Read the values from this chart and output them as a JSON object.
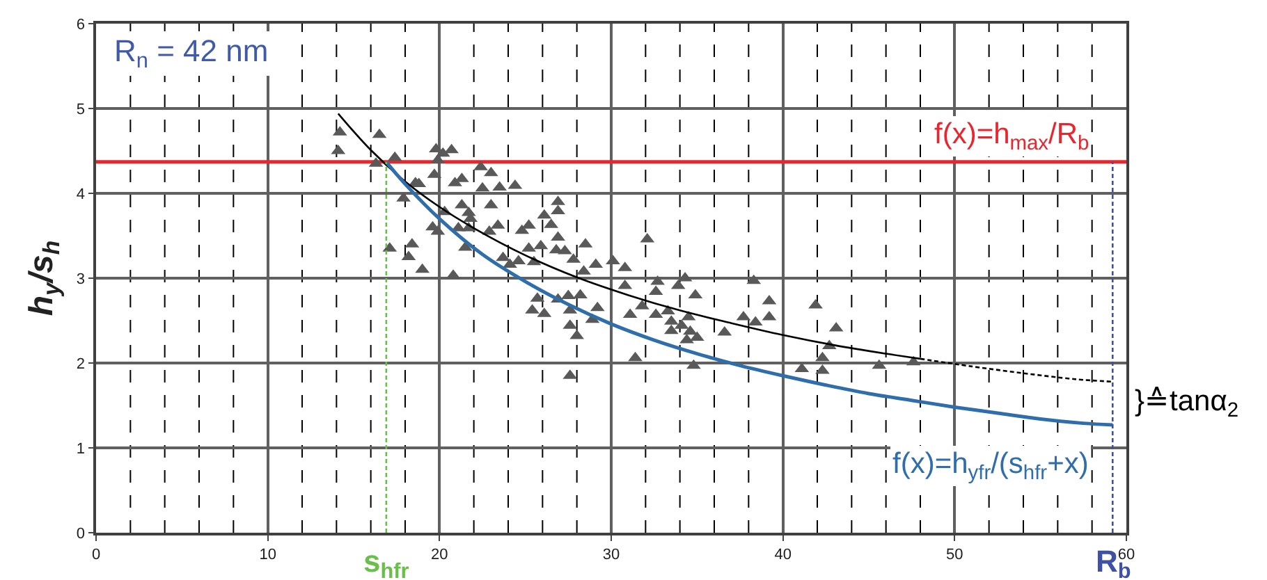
{
  "chart_data": {
    "type": "scatter",
    "ylabel": "h$_{y}$/s$_{h}$",
    "xlim": [
      0,
      60
    ],
    "xticks": [
      0,
      {
        "value": 2,
        "label": null
      },
      {
        "value": 4,
        "label": null
      },
      {
        "value": 6,
        "label": null
      },
      {
        "value": 8,
        "label": null
      },
      10,
      {
        "value": 12,
        "label": null
      },
      {
        "value": 14,
        "label": null
      },
      {
        "value": 16,
        "label": null
      },
      {
        "value": 18,
        "label": null
      },
      20,
      {
        "value": 22,
        "label": null
      },
      {
        "value": 24,
        "label": null
      },
      {
        "value": 26,
        "label": null
      },
      {
        "value": 28,
        "label": null
      },
      30,
      {
        "value": 32,
        "label": null
      },
      {
        "value": 34,
        "label": null
      },
      {
        "value": 36,
        "label": null
      },
      {
        "value": 38,
        "label": null
      },
      40,
      {
        "value": 42,
        "label": null
      },
      {
        "value": 44,
        "label": null
      },
      {
        "value": 46,
        "label": null
      },
      {
        "value": 48,
        "label": null
      },
      50,
      {
        "value": 52,
        "label": null
      },
      {
        "value": 54,
        "label": null
      },
      {
        "value": 56,
        "label": null
      },
      {
        "value": 58,
        "label": null
      },
      60
    ],
    "ylim": [
      0,
      6
    ],
    "yticks": [
      0,
      1,
      2,
      3,
      4,
      5,
      6
    ],
    "grid": true,
    "series": [
      {
        "marker": "triangle",
        "color": "#595959",
        "x": [
          14.2,
          14.1,
          16.5,
          16.3,
          17.4,
          19.8,
          20.2,
          20.7,
          19.9,
          19.7,
          22.4,
          23.0,
          20.9,
          21.3,
          22.5,
          23.5,
          24.4,
          18.6,
          18.8,
          17.9,
          23.0,
          21.3,
          21.7,
          21.8,
          20.3,
          19.6,
          19.9,
          21.1,
          21.7,
          22.9,
          23.4,
          21.5,
          17.1,
          18.4,
          18.2,
          19.0,
          20.8,
          24.8,
          25.2,
          26.1,
          26.9,
          26.9,
          26.5,
          26.9,
          26.8,
          25.2,
          25.9,
          23.7,
          24.1,
          24.6,
          25.5,
          27.3,
          27.8,
          28.5,
          28.4,
          29.1,
          30.1,
          30.8,
          30.8,
          25.7,
          25.4,
          26.1,
          26.9,
          27.5,
          28.2,
          27.6,
          29.2,
          28.9,
          27.6,
          28.0,
          27.6,
          31.1,
          31.4,
          32.1,
          32.7,
          32.6,
          31.8,
          32.6,
          33.3,
          33.9,
          34.3,
          34.9,
          33.5,
          33.5,
          34.1,
          34.5,
          34.6,
          35.0,
          34.4,
          34.8,
          36.6,
          37.7,
          38.4,
          38.3,
          39.2,
          39.2,
          41.9,
          41.1,
          42.3,
          42.3,
          42.7,
          43.1,
          45.6,
          47.6
        ],
        "values": [
          4.72,
          4.5,
          4.69,
          4.35,
          4.42,
          4.52,
          4.47,
          4.51,
          4.39,
          4.22,
          4.31,
          4.24,
          4.12,
          4.17,
          4.06,
          4.07,
          4.09,
          4.12,
          4.11,
          3.94,
          3.86,
          3.86,
          3.77,
          3.7,
          3.78,
          3.6,
          3.55,
          3.59,
          3.59,
          3.55,
          3.62,
          3.36,
          3.35,
          3.4,
          3.25,
          3.1,
          3.03,
          3.56,
          3.62,
          3.74,
          3.9,
          3.79,
          3.63,
          3.48,
          3.33,
          3.35,
          3.38,
          3.24,
          3.16,
          3.2,
          3.19,
          3.32,
          3.22,
          3.4,
          3.08,
          3.16,
          3.2,
          3.12,
          2.91,
          2.76,
          2.62,
          2.58,
          2.75,
          2.79,
          2.8,
          2.62,
          2.65,
          2.51,
          2.44,
          2.32,
          1.85,
          2.57,
          2.06,
          3.46,
          2.96,
          2.84,
          2.67,
          2.57,
          2.61,
          2.91,
          3.0,
          2.8,
          2.49,
          2.38,
          2.44,
          2.54,
          2.37,
          2.3,
          2.27,
          1.97,
          2.36,
          2.54,
          2.48,
          2.97,
          2.73,
          2.54,
          2.68,
          1.93,
          1.91,
          2.06,
          2.2,
          2.41,
          1.97,
          2.01
        ]
      },
      {
        "type": "line",
        "line_style": "solid",
        "color": "#000000",
        "x": [
          14.1,
          16,
          18,
          20,
          22,
          25,
          28,
          31,
          34,
          37,
          40,
          43,
          46,
          48
        ],
        "values": [
          4.94,
          4.51,
          4.14,
          3.84,
          3.59,
          3.27,
          3.01,
          2.8,
          2.62,
          2.47,
          2.33,
          2.21,
          2.11,
          2.05
        ]
      },
      {
        "type": "line",
        "line_style": "dashed",
        "color": "#000000",
        "x": [
          48,
          51,
          54,
          57,
          59.2
        ],
        "values": [
          2.05,
          1.96,
          1.88,
          1.81,
          1.78
        ]
      },
      {
        "type": "line",
        "line_style": "solid",
        "color": "#2f6eaa",
        "name": "f(x)=h$_{yfr}$/(s$_{hfr}$+x)",
        "x": [
          16.9,
          18,
          20,
          22.5,
          25,
          27.5,
          30,
          32.5,
          35,
          37.5,
          40,
          42.5,
          45,
          47.5,
          50,
          52.5,
          55,
          57.5,
          59.2
        ],
        "values": [
          4.37,
          4.11,
          3.7,
          3.28,
          2.96,
          2.69,
          2.46,
          2.27,
          2.11,
          1.97,
          1.85,
          1.74,
          1.64,
          1.56,
          1.48,
          1.41,
          1.34,
          1.29,
          1.27
        ]
      },
      {
        "type": "line",
        "line_style": "dashed",
        "color": "#6abf4b",
        "name": "s$_{hfr}$",
        "x": [
          16.9,
          16.9
        ],
        "values": [
          0,
          4.37
        ]
      },
      {
        "type": "line",
        "line_style": "dashed",
        "color": "#3f51a3",
        "name": "R$_{b}$",
        "x": [
          59.2,
          59.2
        ],
        "values": [
          0,
          4.37
        ]
      }
    ],
    "ref_lines": [
      {
        "axis": "y",
        "value": 4.37,
        "label": "f(x)=h$_{max}$/R$_{b}$",
        "color": "#e8262e"
      }
    ],
    "annotations": [
      "R$_{n}$ = 42 nm",
      "}≙tanα$_{2}$"
    ]
  }
}
